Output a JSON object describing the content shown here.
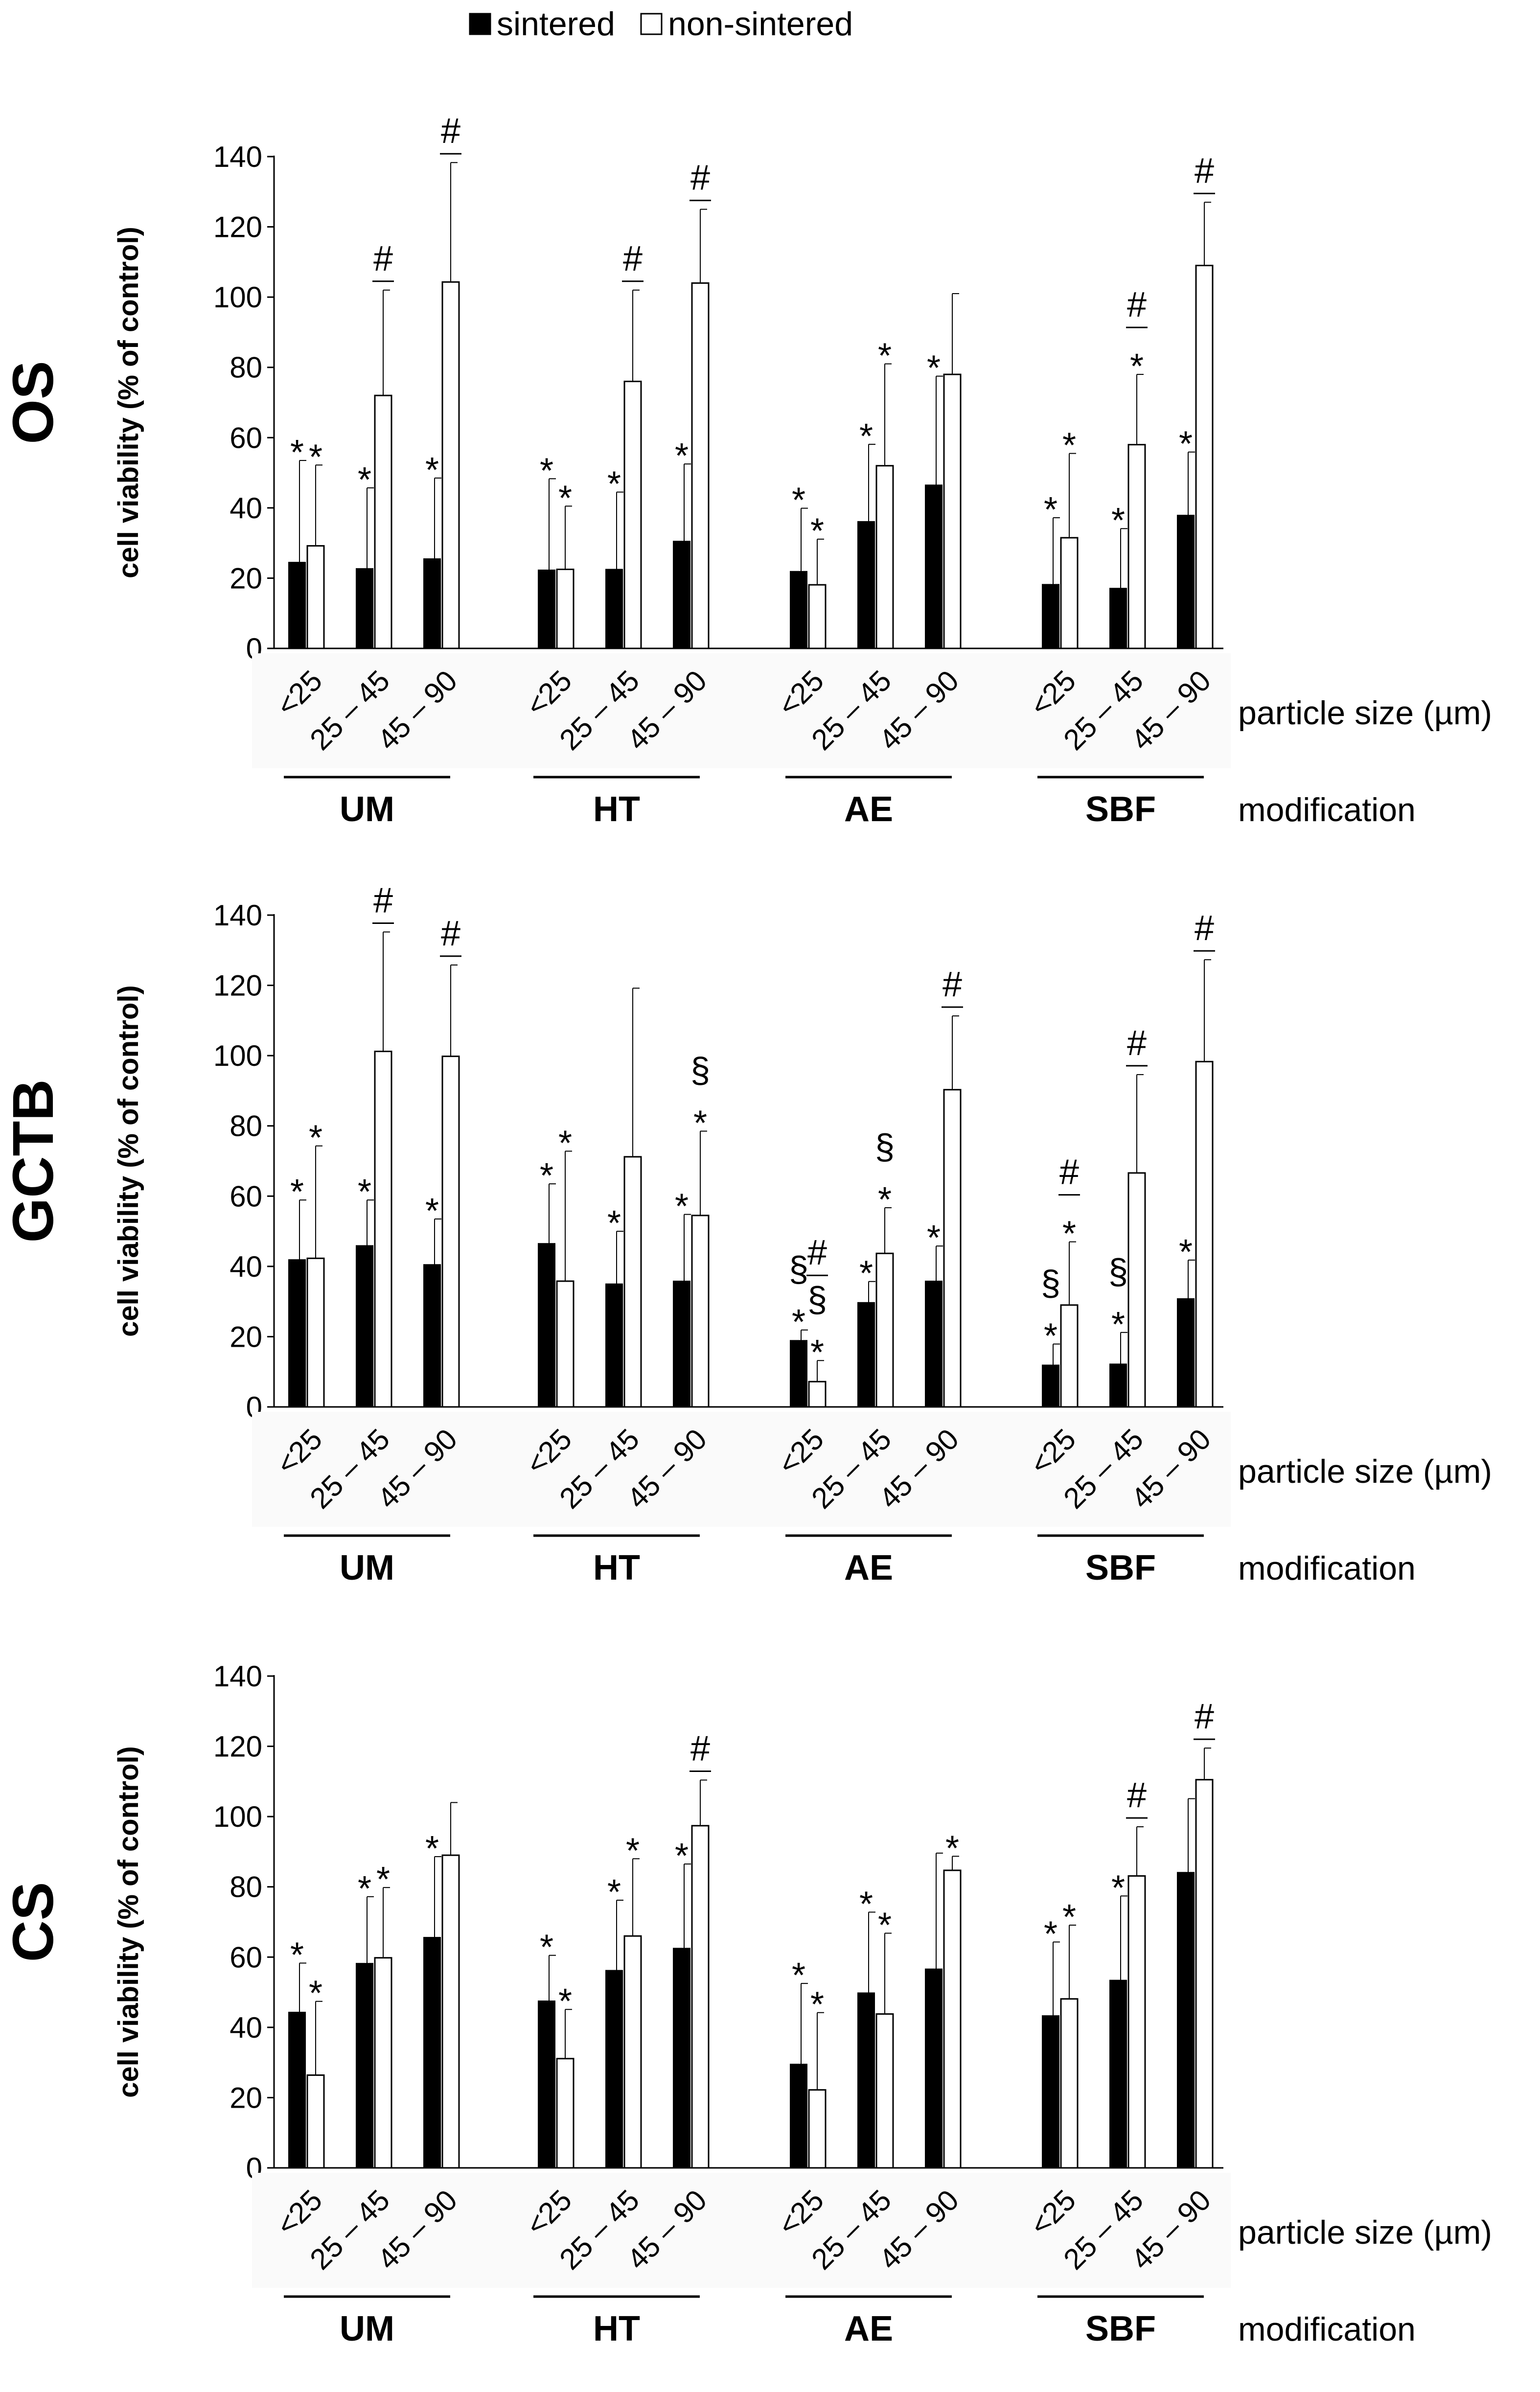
{
  "legend": [
    {
      "label": "sintered",
      "color": "#000000"
    },
    {
      "label": "non-sintered",
      "color": "#ffffff"
    }
  ],
  "labels": {
    "ylabel": "cell viability (% of control)",
    "particle_size_label": "particle size (µm)",
    "modification_label": "modification",
    "size_categories": [
      "<25",
      "25 – 45",
      "45 – 90"
    ],
    "modifications": [
      "UM",
      "HT",
      "AE",
      "SBF"
    ]
  },
  "chart_data": [
    {
      "type": "bar",
      "title": "OS",
      "xlabel": "modification / particle size (µm)",
      "ylabel": "cell viability (% of control)",
      "ylim": [
        0,
        140
      ],
      "yticks": [
        0,
        20,
        40,
        60,
        80,
        100,
        120,
        140
      ],
      "groups": [
        "UM",
        "HT",
        "AE",
        "SBF"
      ],
      "categories": [
        "<25",
        "25 – 45",
        "45 – 90"
      ],
      "series": [
        {
          "name": "sintered",
          "values": [
            [
              24.5,
              22.7,
              25.5
            ],
            [
              22.3,
              22.5,
              30.5
            ],
            [
              21.9,
              36.1,
              46.5
            ],
            [
              18.2,
              17.1,
              37.9
            ]
          ],
          "errors": [
            [
              29,
              23,
              23
            ],
            [
              26,
              22,
              22
            ],
            [
              18,
              22,
              31
            ],
            [
              19,
              17,
              18
            ]
          ]
        },
        {
          "name": "non-sintered",
          "values": [
            [
              29.2,
              72,
              104.3
            ],
            [
              22.5,
              76,
              104
            ],
            [
              18.1,
              52,
              78
            ],
            [
              31.5,
              58,
              109
            ]
          ],
          "errors": [
            [
              23,
              30,
              34
            ],
            [
              18,
              26,
              21
            ],
            [
              13,
              29,
              23
            ],
            [
              24,
              20,
              18
            ]
          ]
        }
      ],
      "annotations": [
        {
          "text": "*",
          "group": 0,
          "cat": 0,
          "series": 0
        },
        {
          "text": "*",
          "group": 0,
          "cat": 0,
          "series": 1
        },
        {
          "text": "*",
          "group": 0,
          "cat": 1,
          "series": 0
        },
        {
          "text": "#",
          "group": 0,
          "cat": 1,
          "series": 1
        },
        {
          "text": "*",
          "group": 0,
          "cat": 2,
          "series": 0
        },
        {
          "text": "#",
          "group": 0,
          "cat": 2,
          "series": 1
        },
        {
          "text": "*",
          "group": 1,
          "cat": 0,
          "series": 0
        },
        {
          "text": "*",
          "group": 1,
          "cat": 0,
          "series": 1
        },
        {
          "text": "*",
          "group": 1,
          "cat": 1,
          "series": 0
        },
        {
          "text": "#",
          "group": 1,
          "cat": 1,
          "series": 1
        },
        {
          "text": "*",
          "group": 1,
          "cat": 2,
          "series": 0
        },
        {
          "text": "#",
          "group": 1,
          "cat": 2,
          "series": 1
        },
        {
          "text": "*",
          "group": 2,
          "cat": 0,
          "series": 0
        },
        {
          "text": "*",
          "group": 2,
          "cat": 0,
          "series": 1
        },
        {
          "text": "*",
          "group": 2,
          "cat": 1,
          "series": 0
        },
        {
          "text": "*",
          "group": 2,
          "cat": 1,
          "series": 1
        },
        {
          "text": "*",
          "group": 2,
          "cat": 2,
          "series": 0
        },
        {
          "text": "*",
          "group": 3,
          "cat": 0,
          "series": 0
        },
        {
          "text": "*",
          "group": 3,
          "cat": 0,
          "series": 1
        },
        {
          "text": "*",
          "group": 3,
          "cat": 1,
          "series": 0
        },
        {
          "text": "*",
          "group": 3,
          "cat": 1,
          "series": 1
        },
        {
          "text": "#",
          "group": 3,
          "cat": 1,
          "series": 1
        },
        {
          "text": "*",
          "group": 3,
          "cat": 2,
          "series": 0
        },
        {
          "text": "#",
          "group": 3,
          "cat": 2,
          "series": 1
        }
      ]
    },
    {
      "type": "bar",
      "title": "GCTB",
      "xlabel": "modification / particle size (µm)",
      "ylabel": "cell viability (% of control)",
      "ylim": [
        0,
        140
      ],
      "yticks": [
        0,
        20,
        40,
        60,
        80,
        100,
        120,
        140
      ],
      "groups": [
        "UM",
        "HT",
        "AE",
        "SBF"
      ],
      "categories": [
        "<25",
        "25 – 45",
        "45 – 90"
      ],
      "series": [
        {
          "name": "sintered",
          "values": [
            [
              41.9,
              45.9,
              40.5
            ],
            [
              46.5,
              35,
              35.8
            ],
            [
              18.9,
              29.7,
              35.8
            ],
            [
              11.9,
              12.2,
              30.8
            ]
          ],
          "errors": [
            [
              17,
              13,
              13
            ],
            [
              17,
              15,
              19
            ],
            [
              3,
              6,
              10
            ],
            [
              6,
              9,
              11
            ]
          ]
        },
        {
          "name": "non-sintered",
          "values": [
            [
              42.3,
              101.2,
              99.8
            ],
            [
              35.8,
              71.2,
              54.5
            ],
            [
              7.2,
              43.7,
              90.3
            ],
            [
              29,
              66.6,
              98.3
            ]
          ],
          "errors": [
            [
              32,
              34,
              26
            ],
            [
              37,
              48,
              24
            ],
            [
              6,
              13,
              21
            ],
            [
              18,
              28,
              29
            ]
          ]
        }
      ],
      "annotations": [
        {
          "text": "*",
          "group": 0,
          "cat": 0,
          "series": 0
        },
        {
          "text": "*",
          "group": 0,
          "cat": 0,
          "series": 1
        },
        {
          "text": "*",
          "group": 0,
          "cat": 1,
          "series": 0
        },
        {
          "text": "#",
          "group": 0,
          "cat": 1,
          "series": 1
        },
        {
          "text": "*",
          "group": 0,
          "cat": 2,
          "series": 0
        },
        {
          "text": "#",
          "group": 0,
          "cat": 2,
          "series": 1
        },
        {
          "text": "*",
          "group": 1,
          "cat": 0,
          "series": 0
        },
        {
          "text": "*",
          "group": 1,
          "cat": 0,
          "series": 1
        },
        {
          "text": "*",
          "group": 1,
          "cat": 1,
          "series": 0
        },
        {
          "text": "*",
          "group": 1,
          "cat": 2,
          "series": 0
        },
        {
          "text": "*",
          "group": 1,
          "cat": 2,
          "series": 1
        },
        {
          "text": "§",
          "group": 1,
          "cat": 2,
          "series": 1
        },
        {
          "text": "*",
          "group": 2,
          "cat": 0,
          "series": 0
        },
        {
          "text": "§",
          "group": 2,
          "cat": 0,
          "series": 0
        },
        {
          "text": "*",
          "group": 2,
          "cat": 0,
          "series": 1
        },
        {
          "text": "§",
          "group": 2,
          "cat": 0,
          "series": 1
        },
        {
          "text": "#",
          "group": 2,
          "cat": 0,
          "series": 1
        },
        {
          "text": "*",
          "group": 2,
          "cat": 1,
          "series": 0
        },
        {
          "text": "*",
          "group": 2,
          "cat": 1,
          "series": 1
        },
        {
          "text": "§",
          "group": 2,
          "cat": 1,
          "series": 1
        },
        {
          "text": "*",
          "group": 2,
          "cat": 2,
          "series": 0
        },
        {
          "text": "#",
          "group": 2,
          "cat": 2,
          "series": 1
        },
        {
          "text": "*",
          "group": 3,
          "cat": 0,
          "series": 0
        },
        {
          "text": "§",
          "group": 3,
          "cat": 0,
          "series": 0
        },
        {
          "text": "*",
          "group": 3,
          "cat": 0,
          "series": 1
        },
        {
          "text": "#",
          "group": 3,
          "cat": 0,
          "series": 1
        },
        {
          "text": "*",
          "group": 3,
          "cat": 1,
          "series": 0
        },
        {
          "text": "§",
          "group": 3,
          "cat": 1,
          "series": 0
        },
        {
          "text": "#",
          "group": 3,
          "cat": 1,
          "series": 1
        },
        {
          "text": "*",
          "group": 3,
          "cat": 2,
          "series": 0
        },
        {
          "text": "#",
          "group": 3,
          "cat": 2,
          "series": 1
        }
      ]
    },
    {
      "type": "bar",
      "title": "CS",
      "xlabel": "modification / particle size (µm)",
      "ylabel": "cell viability (% of control)",
      "ylim": [
        0,
        140
      ],
      "yticks": [
        0,
        20,
        40,
        60,
        80,
        100,
        120,
        140
      ],
      "groups": [
        "UM",
        "HT",
        "AE",
        "SBF"
      ],
      "categories": [
        "<25",
        "25 – 45",
        "45 – 90"
      ],
      "series": [
        {
          "name": "sintered",
          "values": [
            [
              44.3,
              58.2,
              65.6
            ],
            [
              47.5,
              56.2,
              62.5
            ],
            [
              29.5,
              49.8,
              56.6
            ],
            [
              43.3,
              53.4,
              84.1
            ]
          ],
          "errors": [
            [
              14,
              19,
              23
            ],
            [
              13,
              20,
              24
            ],
            [
              23,
              23,
              33
            ],
            [
              21,
              24,
              21
            ]
          ]
        },
        {
          "name": "non-sintered",
          "values": [
            [
              26.4,
              59.8,
              89
            ],
            [
              31.1,
              66,
              97.4
            ],
            [
              22.2,
              43.8,
              84.7
            ],
            [
              48.1,
              83.1,
              110.5
            ]
          ],
          "errors": [
            [
              21,
              20,
              15
            ],
            [
              14,
              22,
              13
            ],
            [
              22,
              23,
              4
            ],
            [
              21,
              14,
              9
            ]
          ]
        }
      ],
      "annotations": [
        {
          "text": "*",
          "group": 0,
          "cat": 0,
          "series": 0
        },
        {
          "text": "*",
          "group": 0,
          "cat": 0,
          "series": 1
        },
        {
          "text": "*",
          "group": 0,
          "cat": 1,
          "series": 0
        },
        {
          "text": "*",
          "group": 0,
          "cat": 1,
          "series": 1
        },
        {
          "text": "*",
          "group": 0,
          "cat": 2,
          "series": 0
        },
        {
          "text": "*",
          "group": 1,
          "cat": 0,
          "series": 0
        },
        {
          "text": "*",
          "group": 1,
          "cat": 0,
          "series": 1
        },
        {
          "text": "*",
          "group": 1,
          "cat": 1,
          "series": 0
        },
        {
          "text": "*",
          "group": 1,
          "cat": 1,
          "series": 1
        },
        {
          "text": "*",
          "group": 1,
          "cat": 2,
          "series": 0
        },
        {
          "text": "#",
          "group": 1,
          "cat": 2,
          "series": 1
        },
        {
          "text": "*",
          "group": 2,
          "cat": 0,
          "series": 0
        },
        {
          "text": "*",
          "group": 2,
          "cat": 0,
          "series": 1
        },
        {
          "text": "*",
          "group": 2,
          "cat": 1,
          "series": 0
        },
        {
          "text": "*",
          "group": 2,
          "cat": 1,
          "series": 1
        },
        {
          "text": "*",
          "group": 2,
          "cat": 2,
          "series": 1
        },
        {
          "text": "*",
          "group": 3,
          "cat": 0,
          "series": 0
        },
        {
          "text": "*",
          "group": 3,
          "cat": 0,
          "series": 1
        },
        {
          "text": "*",
          "group": 3,
          "cat": 1,
          "series": 0
        },
        {
          "text": "#",
          "group": 3,
          "cat": 1,
          "series": 1
        },
        {
          "text": "#",
          "group": 3,
          "cat": 2,
          "series": 1
        }
      ]
    }
  ]
}
